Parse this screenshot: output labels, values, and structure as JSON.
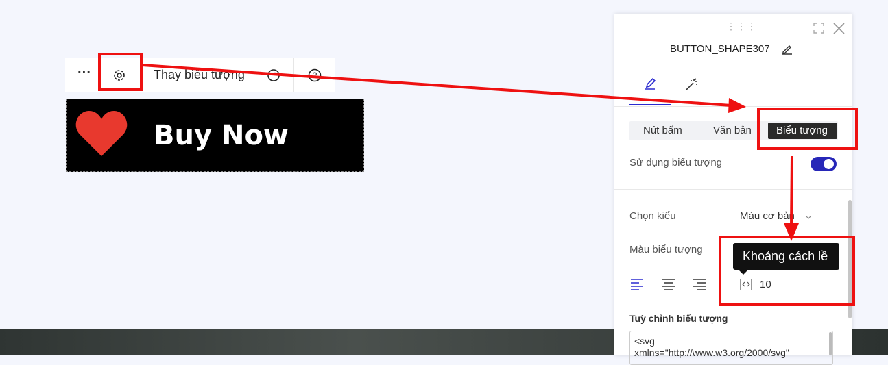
{
  "toolbar": {
    "replace_icon": "Thay biểu tượng"
  },
  "button": {
    "label": "Buy Now"
  },
  "panel": {
    "title": "BUTTON_SHAPE307",
    "tabs": [
      "Nút bấm",
      "Văn bản",
      "Biểu tượng"
    ],
    "use_icon": "Sử dụng biểu tượng",
    "style": {
      "label": "Chọn kiểu",
      "value": "Màu cơ bản"
    },
    "icon_color": "Màu biểu tượng",
    "tooltip": "Khoảng cách lề",
    "padding": 10,
    "custom_icon": {
      "label": "Tuỳ chỉnh biểu tượng",
      "code": "<svg\nxmlns=\"http://www.w3.org/2000/svg\""
    }
  }
}
